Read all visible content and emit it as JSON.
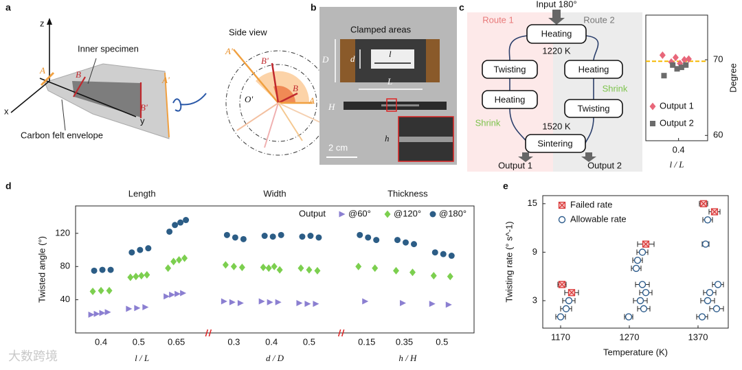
{
  "figure": {
    "panel_a": {
      "letter": "a",
      "axis_z": "z",
      "axis_x": "x",
      "axis_y": "y",
      "edge_A": "A",
      "edge_B": "B",
      "edge_B2": "B'",
      "edge_A2": "A'",
      "inner": "Inner specimen",
      "envelope": "Carbon felt envelope",
      "side_view": "Side view",
      "side_A2": "A'",
      "side_B2": "B'",
      "side_B": "B",
      "side_O": "O'",
      "side_A": "A"
    },
    "panel_b": {
      "letter": "b",
      "clamped": "Clamped areas",
      "D": "D",
      "d": "d",
      "l": "l",
      "L": "L",
      "H": "H",
      "h": "h",
      "scale": "2 cm"
    },
    "panel_c": {
      "letter": "c",
      "input": "Input 180°",
      "route1": "Route 1",
      "route2": "Route 2",
      "heating_top": "Heating",
      "t1": "1220 K",
      "r1_step1": "Twisting",
      "r1_step2": "Heating",
      "r2_step1": "Heating",
      "r2_step2": "Twisting",
      "shrink_r2": "Shrink",
      "shrink_r1": "Shrink",
      "t2": "1520 K",
      "sintering": "Sintering",
      "output1": "Output 1",
      "output2": "Output 2"
    },
    "panel_d": {
      "letter": "d"
    },
    "panel_e": {
      "letter": "e"
    },
    "watermark": "大数跨境"
  },
  "chart_data": [
    {
      "type": "scatter",
      "xlabel": "l / L",
      "ylabel": "Degree",
      "xlim": [
        0.355,
        0.44
      ],
      "xticks": [
        0.4
      ],
      "ylim": [
        59.3,
        75.9
      ],
      "yticks": [
        60,
        70
      ],
      "yaxis": "right",
      "legend": "lower left",
      "ref_line": {
        "value": 69.8,
        "color": "#f5b800"
      },
      "series": [
        {
          "name": "Output 1",
          "color": "#e8677a",
          "marker": "diamond",
          "x": [
            0.378,
            0.39,
            0.396,
            0.402,
            0.408,
            0.414
          ],
          "values": [
            70.6,
            69.7,
            70.3,
            69.5,
            70.0,
            70.1
          ]
        },
        {
          "name": "Output 2",
          "color": "#6b6b6b",
          "marker": "square",
          "x": [
            0.38,
            0.392,
            0.398,
            0.404,
            0.41
          ],
          "values": [
            67.9,
            69.3,
            68.8,
            69.0,
            69.3
          ]
        }
      ]
    },
    {
      "type": "category_scatter",
      "ylabel": "Twisted angle (°)",
      "ylim": [
        0,
        153
      ],
      "yticks": [
        40,
        80,
        120
      ],
      "legend_title": "Output",
      "legend": "upper right",
      "groups": [
        {
          "name": "Length",
          "xlabel": "l / L",
          "categories": [
            0.4,
            0.5,
            0.65
          ]
        },
        {
          "name": "Width",
          "xlabel": "d / D",
          "categories": [
            0.3,
            0.4,
            0.5
          ]
        },
        {
          "name": "Thickness",
          "xlabel": "h / H",
          "categories": [
            0.15,
            0.35,
            0.5
          ]
        }
      ],
      "series": [
        {
          "name": "@60°",
          "color": "#8b7fd1",
          "marker": "triangle",
          "values": [
            [
              [
                22,
                23,
                24,
                25
              ],
              [
                29,
                30,
                31
              ],
              [
                44,
                46,
                47,
                48
              ]
            ],
            [
              [
                38,
                37,
                36
              ],
              [
                38,
                37,
                37
              ],
              [
                36,
                35,
                35
              ]
            ],
            [
              [
                38
              ],
              [
                36
              ],
              [
                35,
                34
              ]
            ]
          ]
        },
        {
          "name": "@120°",
          "color": "#7ccf4f",
          "marker": "diamond",
          "values": [
            [
              [
                50,
                51,
                51
              ],
              [
                67,
                68,
                69,
                70
              ],
              [
                78,
                86,
                88,
                90
              ]
            ],
            [
              [
                82,
                80,
                79
              ],
              [
                79,
                78,
                80,
                76
              ],
              [
                78,
                76,
                75
              ]
            ],
            [
              [
                80,
                78
              ],
              [
                75,
                73
              ],
              [
                69,
                68
              ]
            ]
          ]
        },
        {
          "name": "@180°",
          "color": "#2c5d86",
          "marker": "circle",
          "values": [
            [
              [
                75,
                76,
                76
              ],
              [
                97,
                100,
                102
              ],
              [
                122,
                130,
                133,
                136
              ]
            ],
            [
              [
                118,
                115,
                113
              ],
              [
                117,
                116,
                118
              ],
              [
                116,
                117,
                115
              ]
            ],
            [
              [
                118,
                115,
                112
              ],
              [
                112,
                109,
                107
              ],
              [
                97,
                95,
                93
              ]
            ]
          ]
        }
      ]
    },
    {
      "type": "errorbar_scatter",
      "xlabel": "Temperature (K)",
      "ylabel": "Twisting rate (° s^-1)",
      "xlim": [
        1144,
        1414
      ],
      "xticks": [
        1170,
        1270,
        1370
      ],
      "ylim": [
        -0.4,
        16
      ],
      "yticks": [
        3,
        9,
        15
      ],
      "legend": "upper left",
      "series": [
        {
          "name": "Failed rate",
          "color": "#d93a3a",
          "marker": "x-square",
          "x": [
            1172,
            1186,
            1294,
            1378,
            1394
          ],
          "values": [
            5,
            4,
            10,
            15,
            14
          ],
          "xerr": [
            6,
            10,
            12,
            6,
            8
          ]
        },
        {
          "name": "Allowable rate",
          "color": "#2d5c8c",
          "marker": "open-circle",
          "x": [
            1170,
            1178,
            1182,
            1269,
            1291,
            1286,
            1294,
            1289,
            1280,
            1282,
            1289,
            1381,
            1376,
            1397,
            1384,
            1387,
            1399,
            1384
          ],
          "values": [
            1,
            2,
            3,
            1,
            2,
            3,
            4,
            5,
            7,
            8,
            9,
            10,
            1,
            2,
            3,
            4,
            5,
            13
          ],
          "xerr": [
            7,
            8,
            9,
            6,
            9,
            10,
            9,
            10,
            7,
            7,
            8,
            5,
            8,
            10,
            10,
            9,
            8,
            7
          ]
        }
      ]
    }
  ]
}
